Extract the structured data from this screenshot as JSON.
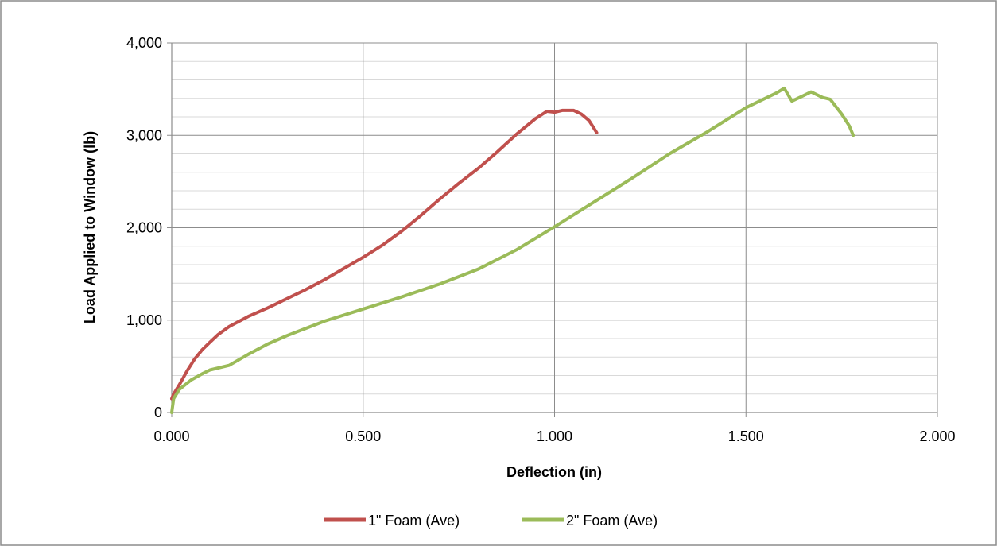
{
  "chart_data": {
    "type": "line",
    "title": "",
    "xlabel": "Deflection (in)",
    "ylabel": "Load Applied to Window (lb)",
    "xlim": [
      0,
      2
    ],
    "ylim": [
      0,
      4000
    ],
    "x_ticks": [
      0,
      0.5,
      1.0,
      1.5,
      2.0
    ],
    "x_tick_labels": [
      "0.000",
      "0.500",
      "1.000",
      "1.500",
      "2.000"
    ],
    "y_ticks": [
      0,
      1000,
      2000,
      3000,
      4000
    ],
    "y_tick_labels": [
      "0",
      "1,000",
      "2,000",
      "3,000",
      "4,000"
    ],
    "y_minor_step": 200,
    "grid": true,
    "legend_position": "bottom",
    "series": [
      {
        "name": "1\" Foam (Ave)",
        "color": "#c0504d",
        "x": [
          0,
          0.005,
          0.02,
          0.04,
          0.06,
          0.08,
          0.1,
          0.12,
          0.15,
          0.2,
          0.25,
          0.3,
          0.35,
          0.4,
          0.45,
          0.5,
          0.55,
          0.6,
          0.65,
          0.7,
          0.75,
          0.8,
          0.85,
          0.9,
          0.95,
          0.98,
          1.0,
          1.02,
          1.05,
          1.07,
          1.09,
          1.11
        ],
        "y": [
          150,
          200,
          300,
          450,
          580,
          680,
          760,
          840,
          930,
          1040,
          1130,
          1230,
          1330,
          1440,
          1560,
          1680,
          1810,
          1960,
          2130,
          2310,
          2480,
          2640,
          2820,
          3010,
          3180,
          3260,
          3250,
          3270,
          3270,
          3230,
          3160,
          3030
        ]
      },
      {
        "name": "2\" Foam (Ave)",
        "color": "#9bbb59",
        "x": [
          0,
          0.005,
          0.02,
          0.05,
          0.08,
          0.1,
          0.15,
          0.2,
          0.25,
          0.3,
          0.4,
          0.5,
          0.6,
          0.7,
          0.8,
          0.9,
          1.0,
          1.1,
          1.2,
          1.3,
          1.4,
          1.5,
          1.55,
          1.58,
          1.6,
          1.62,
          1.65,
          1.67,
          1.7,
          1.72,
          1.75,
          1.77,
          1.78
        ],
        "y": [
          0,
          150,
          250,
          350,
          420,
          460,
          510,
          630,
          740,
          830,
          990,
          1120,
          1250,
          1390,
          1550,
          1760,
          2010,
          2270,
          2530,
          2800,
          3040,
          3300,
          3400,
          3460,
          3510,
          3370,
          3430,
          3470,
          3410,
          3390,
          3230,
          3100,
          3000
        ]
      }
    ]
  }
}
